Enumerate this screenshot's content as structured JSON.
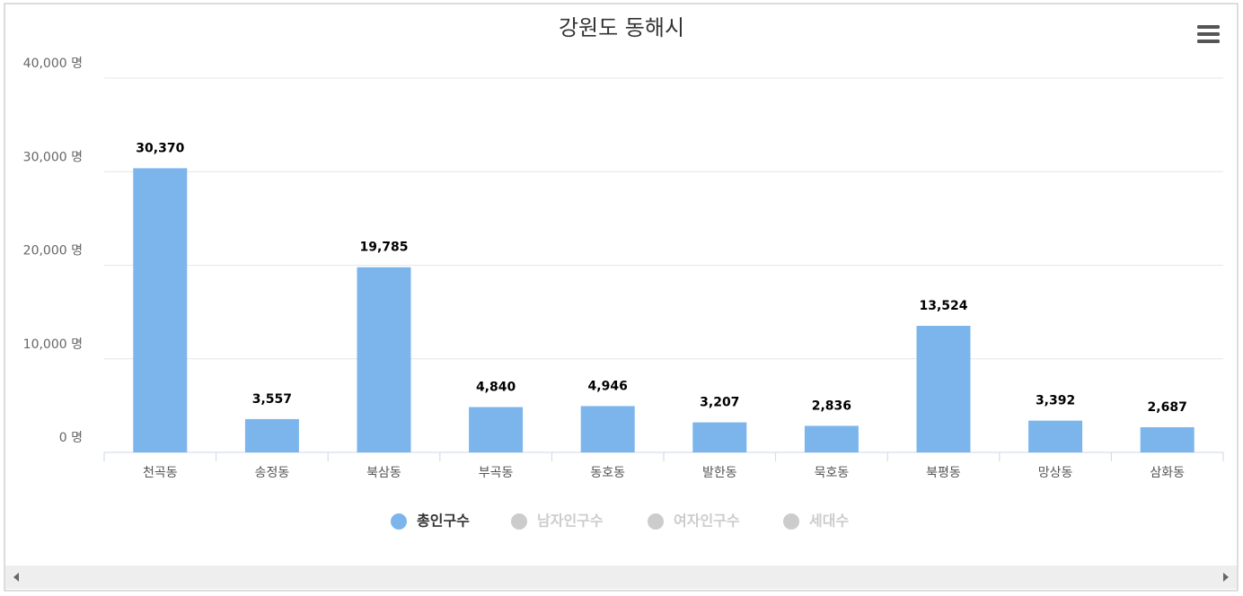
{
  "chart_data": {
    "type": "bar",
    "title": "강원도 동해시",
    "categories": [
      "천곡동",
      "송정동",
      "북삼동",
      "부곡동",
      "동호동",
      "발한동",
      "묵호동",
      "북평동",
      "망상동",
      "삼화동"
    ],
    "series": [
      {
        "name": "총인구수",
        "color": "#7cb5ec",
        "values": [
          30370,
          3557,
          19785,
          4840,
          4946,
          3207,
          2836,
          13524,
          3392,
          2687
        ],
        "value_labels": [
          "30,370",
          "3,557",
          "19,785",
          "4,840",
          "4,946",
          "3,207",
          "2,836",
          "13,524",
          "3,392",
          "2,687"
        ]
      }
    ],
    "hidden_series": [
      {
        "name": "남자인구수",
        "color": "#cccccc"
      },
      {
        "name": "여자인구수",
        "color": "#cccccc"
      },
      {
        "name": "세대수",
        "color": "#cccccc"
      }
    ],
    "ylim": [
      0,
      40000
    ],
    "yticks": [
      {
        "value": 0,
        "label": "0 명"
      },
      {
        "value": 10000,
        "label": "10,000 명"
      },
      {
        "value": 20000,
        "label": "20,000 명"
      },
      {
        "value": 30000,
        "label": "30,000 명"
      },
      {
        "value": 40000,
        "label": "40,000 명"
      }
    ],
    "grid": true
  }
}
